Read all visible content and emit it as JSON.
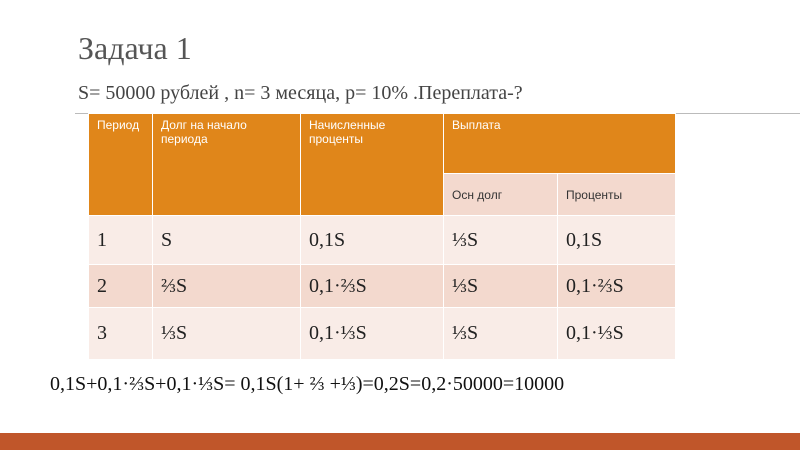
{
  "header": {
    "title": "Задача 1",
    "subtitle": "S= 50000 рублей , n= 3 месяца, p= 10% .Переплата-?"
  },
  "table": {
    "head": [
      "Период",
      "Долг на начало периода",
      "Начисленные проценты",
      "Выплата"
    ],
    "subhead": [
      "Осн долг",
      "Проценты"
    ],
    "rows": [
      [
        "1",
        "S",
        "0,1S",
        "⅓S",
        "0,1S"
      ],
      [
        "2",
        "⅔S",
        "0,1·⅔S",
        "⅓S",
        "0,1·⅔S"
      ],
      [
        "3",
        "⅓S",
        "0,1·⅓S",
        "⅓S",
        "0,1·⅓S"
      ]
    ]
  },
  "formula": "0,1S+0,1·⅔S+0,1·⅓S= 0,1S(1+ ⅔ +⅓)=0,2S=0,2·50000=10000"
}
